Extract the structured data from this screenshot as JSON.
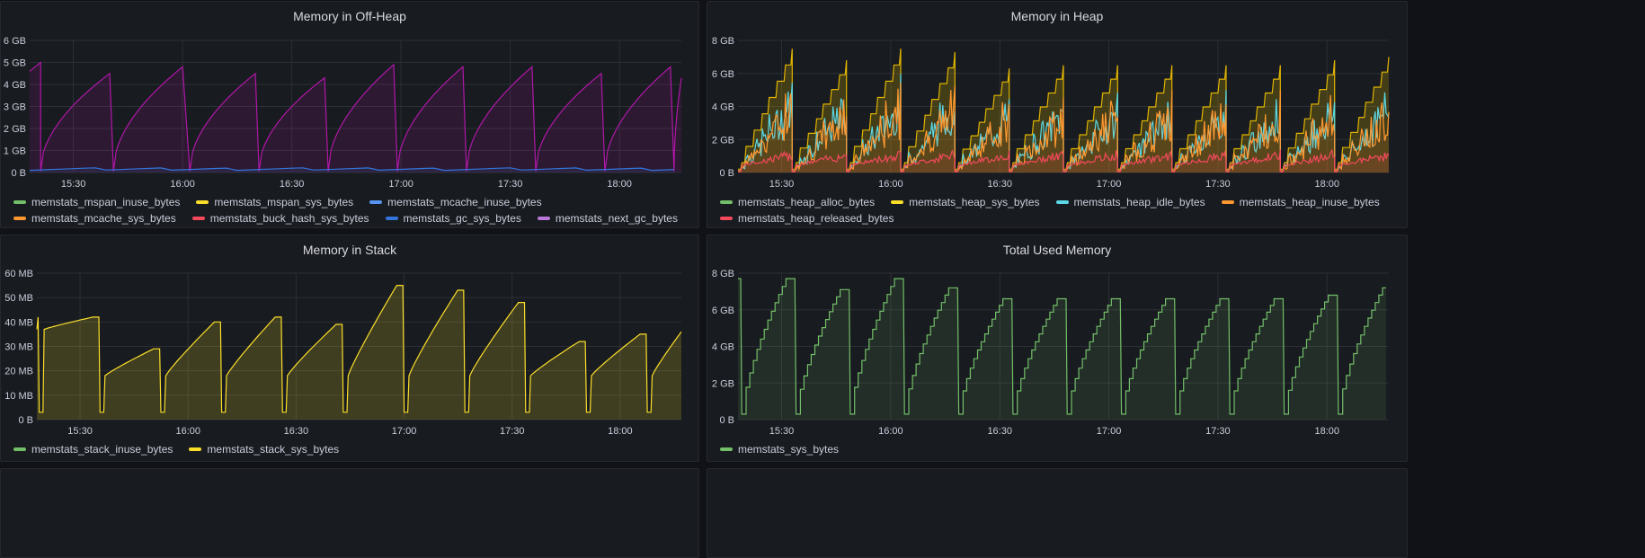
{
  "dashboard": {
    "panels": [
      {
        "id": "offheap",
        "title": "Memory in Off-Heap",
        "chart_data": {
          "type": "area",
          "ylabel": "",
          "yticks": [
            "0 B",
            "1 GB",
            "2 GB",
            "3 GB",
            "4 GB",
            "5 GB",
            "6 GB"
          ],
          "xticks": [
            "15:30",
            "16:00",
            "16:30",
            "17:00",
            "17:30",
            "18:00"
          ],
          "ylim": [
            0,
            6
          ],
          "xrange": [
            "15:18",
            "18:17"
          ],
          "grid": true,
          "legend_position": "bottom",
          "series": [
            {
              "name": "memstats_mspan_inuse_bytes",
              "color": "#73bf69",
              "values_gb": [
                0.03,
                0.03,
                0.03,
                0.03,
                0.03,
                0.03,
                0.03
              ]
            },
            {
              "name": "memstats_mspan_sys_bytes",
              "color": "#fade2a",
              "values_gb": [
                0.04,
                0.04,
                0.04,
                0.04,
                0.04,
                0.04,
                0.04
              ]
            },
            {
              "name": "memstats_mcache_inuse_bytes",
              "color": "#5794f2",
              "values_gb": [
                0.0,
                0.0,
                0.0,
                0.0,
                0.0,
                0.0,
                0.0
              ]
            },
            {
              "name": "memstats_mcache_sys_bytes",
              "color": "#ff9830",
              "values_gb": [
                0.0,
                0.0,
                0.0,
                0.0,
                0.0,
                0.0,
                0.0
              ]
            },
            {
              "name": "memstats_buck_hash_sys_bytes",
              "color": "#f2495c",
              "values_gb": [
                0.01,
                0.01,
                0.01,
                0.01,
                0.01,
                0.01,
                0.01
              ]
            },
            {
              "name": "memstats_gc_sys_bytes",
              "color": "#3274d9",
              "values_gb": [
                0.25,
                0.1,
                0.2,
                0.1,
                0.2,
                0.1,
                0.25
              ]
            },
            {
              "name": "memstats_next_gc_bytes",
              "color": "#b877d9",
              "values_gb": [
                4.6,
                5.0,
                0.1,
                4.4,
                4.8,
                4.3,
                4.9,
                4.4,
                4.8,
                4.7,
                4.8,
                4.3
              ]
            }
          ],
          "sawtooth_cycles": [
            {
              "start": "15:21",
              "end": "15:40",
              "peak_gb": 4.5
            },
            {
              "start": "15:41",
              "end": "16:00",
              "peak_gb": 4.8
            },
            {
              "start": "16:02",
              "end": "16:20",
              "peak_gb": 4.5
            },
            {
              "start": "16:21",
              "end": "16:39",
              "peak_gb": 4.3
            },
            {
              "start": "16:40",
              "end": "16:58",
              "peak_gb": 4.9
            },
            {
              "start": "16:59",
              "end": "17:17",
              "peak_gb": 4.8
            },
            {
              "start": "17:18",
              "end": "17:36",
              "peak_gb": 4.8
            },
            {
              "start": "17:37",
              "end": "17:55",
              "peak_gb": 4.5
            },
            {
              "start": "17:56",
              "end": "18:14",
              "peak_gb": 4.8
            },
            {
              "start": "18:15",
              "end": "18:17",
              "peak_gb": 4.3
            }
          ]
        }
      },
      {
        "id": "heap",
        "title": "Memory in Heap",
        "chart_data": {
          "type": "area",
          "yticks": [
            "0 B",
            "2 GB",
            "4 GB",
            "6 GB",
            "8 GB"
          ],
          "xticks": [
            "15:30",
            "16:00",
            "16:30",
            "17:00",
            "17:30",
            "18:00"
          ],
          "ylim": [
            0,
            8
          ],
          "grid": true,
          "legend_position": "bottom",
          "series": [
            {
              "name": "memstats_heap_alloc_bytes",
              "color": "#73bf69"
            },
            {
              "name": "memstats_heap_sys_bytes",
              "color": "#fade2a"
            },
            {
              "name": "memstats_heap_idle_bytes",
              "color": "#5bd8e6"
            },
            {
              "name": "memstats_heap_inuse_bytes",
              "color": "#ff9830"
            },
            {
              "name": "memstats_heap_released_bytes",
              "color": "#f2495c"
            }
          ],
          "sys_peaks_gb": [
            7.5,
            6.8,
            7.5,
            7.3,
            6.3,
            6.5,
            6.5,
            6.5,
            6.5,
            6.5,
            6.8,
            7.0
          ]
        }
      },
      {
        "id": "stack",
        "title": "Memory in Stack",
        "chart_data": {
          "type": "area",
          "yticks": [
            "0 B",
            "10 MB",
            "20 MB",
            "30 MB",
            "40 MB",
            "50 MB",
            "60 MB"
          ],
          "xticks": [
            "15:30",
            "16:00",
            "16:30",
            "17:00",
            "17:30",
            "18:00"
          ],
          "ylim": [
            0,
            60
          ],
          "grid": true,
          "legend_position": "bottom",
          "series": [
            {
              "name": "memstats_stack_inuse_bytes",
              "color": "#73bf69"
            },
            {
              "name": "memstats_stack_sys_bytes",
              "color": "#fade2a"
            }
          ],
          "cycle_peaks_mb": [
            42,
            29,
            40,
            42,
            39,
            55,
            53,
            48,
            32,
            35,
            36
          ]
        }
      },
      {
        "id": "total",
        "title": "Total Used Memory",
        "chart_data": {
          "type": "area",
          "yticks": [
            "0 B",
            "2 GB",
            "4 GB",
            "6 GB",
            "8 GB"
          ],
          "xticks": [
            "15:30",
            "16:00",
            "16:30",
            "17:00",
            "17:30",
            "18:00"
          ],
          "ylim": [
            0,
            8
          ],
          "grid": true,
          "legend_position": "bottom",
          "series": [
            {
              "name": "memstats_sys_bytes",
              "color": "#73bf69"
            }
          ],
          "cycle_peaks_gb": [
            7.7,
            7.1,
            7.7,
            7.2,
            6.6,
            6.6,
            6.6,
            6.6,
            6.6,
            6.6,
            6.8,
            7.2
          ]
        }
      }
    ]
  }
}
